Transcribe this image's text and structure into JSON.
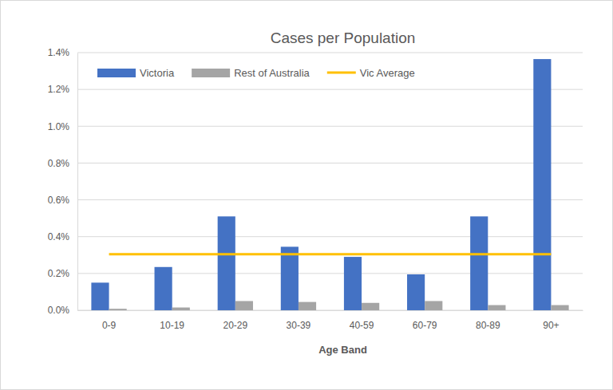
{
  "chart_data": {
    "type": "bar",
    "title": "Cases per Population",
    "x_label": "Age Band",
    "categories": [
      "0-9",
      "10-19",
      "20-29",
      "30-39",
      "40-59",
      "60-79",
      "80-89",
      "90+"
    ],
    "series": [
      {
        "name": "Victoria",
        "type": "bar",
        "color": "#4472c4",
        "values": [
          0.15,
          0.235,
          0.51,
          0.345,
          0.29,
          0.195,
          0.51,
          1.365
        ]
      },
      {
        "name": "Rest of Australia",
        "type": "bar",
        "color": "#a5a5a5",
        "values": [
          0.008,
          0.015,
          0.05,
          0.045,
          0.04,
          0.05,
          0.028,
          0.028
        ]
      },
      {
        "name": "Vic Average",
        "type": "line",
        "color": "#ffc000",
        "values": [
          0.305,
          0.305,
          0.305,
          0.305,
          0.305,
          0.305,
          0.305,
          0.305
        ]
      }
    ],
    "ylim": [
      0,
      1.4
    ],
    "yticks": [
      {
        "value": 0,
        "label": "0.0%"
      },
      {
        "value": 0.2,
        "label": "0.2%"
      },
      {
        "value": 0.4,
        "label": "0.4%"
      },
      {
        "value": 0.6,
        "label": "0.6%"
      },
      {
        "value": 0.8,
        "label": "0.8%"
      },
      {
        "value": 1.0,
        "label": "1.0%"
      },
      {
        "value": 1.2,
        "label": "1.2%"
      },
      {
        "value": 1.4,
        "label": "1.4%"
      }
    ],
    "grid": true,
    "legend": "top-left"
  }
}
